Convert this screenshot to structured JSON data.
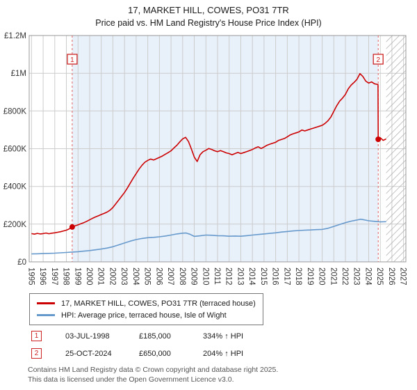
{
  "title": "17, MARKET HILL, COWES, PO31 7TR",
  "subtitle": "Price paid vs. HM Land Registry's House Price Index (HPI)",
  "colors": {
    "property": "#cc0000",
    "hpi": "#6699cc",
    "shade": "#e8f0fa",
    "grid": "#cccccc",
    "border": "#999999",
    "dashed": "#e06060",
    "marker_box": "#cc2222",
    "hatch": "#aaaaaa"
  },
  "transactions": [
    {
      "id": "1",
      "date": "03-JUL-1998",
      "price": "£185,000",
      "hpi": "334% ↑ HPI"
    },
    {
      "id": "2",
      "date": "25-OCT-2024",
      "price": "£650,000",
      "hpi": "204% ↑ HPI"
    }
  ],
  "footer": {
    "line1": "Contains HM Land Registry data © Crown copyright and database right 2025.",
    "line2": "This data is licensed under the Open Government Licence v3.0."
  },
  "chart_data": {
    "type": "line",
    "title": "17, MARKET HILL, COWES, PO31 7TR",
    "subtitle": "Price paid vs. HM Land Registry's House Price Index (HPI)",
    "grid": true,
    "legend_position": "bottom",
    "x_range": [
      1994.8,
      2027.2
    ],
    "y_range": [
      0,
      1200000
    ],
    "y_value_multiplier": 1000,
    "y_ticks": [
      {
        "value": 0,
        "label": "£0"
      },
      {
        "value": 200000,
        "label": "£200K"
      },
      {
        "value": 400000,
        "label": "£400K"
      },
      {
        "value": 600000,
        "label": "£600K"
      },
      {
        "value": 800000,
        "label": "£800K"
      },
      {
        "value": 1000000,
        "label": "£1M"
      },
      {
        "value": 1200000,
        "label": "£1.2M"
      }
    ],
    "x_ticks": [
      1995,
      1996,
      1997,
      1998,
      1999,
      2000,
      2001,
      2002,
      2003,
      2004,
      2005,
      2006,
      2007,
      2008,
      2009,
      2010,
      2011,
      2012,
      2013,
      2014,
      2015,
      2016,
      2017,
      2018,
      2019,
      2020,
      2021,
      2022,
      2023,
      2024,
      2025,
      2026,
      2027
    ],
    "shaded_region": [
      1998.5,
      2024.82
    ],
    "hatched_region": [
      2025.5,
      2027.2
    ],
    "markers": [
      {
        "id": "1",
        "x": 1998.5,
        "y": 185000
      },
      {
        "id": "2",
        "x": 2024.82,
        "y": 650000
      }
    ],
    "series": [
      {
        "name": "17, MARKET HILL, COWES, PO31 7TR (terraced house)",
        "color": "#cc0000",
        "width": 1.6,
        "points": [
          [
            1995,
            150
          ],
          [
            1995.25,
            147
          ],
          [
            1995.5,
            151
          ],
          [
            1995.75,
            148
          ],
          [
            1996,
            150
          ],
          [
            1996.25,
            153
          ],
          [
            1996.5,
            149
          ],
          [
            1996.75,
            152
          ],
          [
            1997,
            154
          ],
          [
            1997.25,
            157
          ],
          [
            1997.5,
            160
          ],
          [
            1997.75,
            164
          ],
          [
            1998,
            168
          ],
          [
            1998.25,
            175
          ],
          [
            1998.5,
            185
          ],
          [
            1998.75,
            191
          ],
          [
            1999,
            196
          ],
          [
            1999.25,
            202
          ],
          [
            1999.5,
            208
          ],
          [
            1999.75,
            215
          ],
          [
            2000,
            223
          ],
          [
            2000.25,
            231
          ],
          [
            2000.5,
            238
          ],
          [
            2000.75,
            244
          ],
          [
            2001,
            251
          ],
          [
            2001.25,
            257
          ],
          [
            2001.5,
            264
          ],
          [
            2001.75,
            274
          ],
          [
            2002,
            288
          ],
          [
            2002.25,
            308
          ],
          [
            2002.5,
            328
          ],
          [
            2002.75,
            348
          ],
          [
            2003,
            368
          ],
          [
            2003.25,
            392
          ],
          [
            2003.5,
            418
          ],
          [
            2003.75,
            444
          ],
          [
            2004,
            468
          ],
          [
            2004.25,
            492
          ],
          [
            2004.5,
            512
          ],
          [
            2004.75,
            528
          ],
          [
            2005,
            538
          ],
          [
            2005.25,
            545
          ],
          [
            2005.5,
            540
          ],
          [
            2005.75,
            547
          ],
          [
            2006,
            554
          ],
          [
            2006.25,
            561
          ],
          [
            2006.5,
            570
          ],
          [
            2006.75,
            579
          ],
          [
            2007,
            589
          ],
          [
            2007.25,
            604
          ],
          [
            2007.5,
            618
          ],
          [
            2007.75,
            636
          ],
          [
            2008,
            652
          ],
          [
            2008.25,
            660
          ],
          [
            2008.5,
            638
          ],
          [
            2008.75,
            598
          ],
          [
            2009,
            556
          ],
          [
            2009.25,
            532
          ],
          [
            2009.5,
            568
          ],
          [
            2009.75,
            584
          ],
          [
            2010,
            592
          ],
          [
            2010.25,
            601
          ],
          [
            2010.5,
            596
          ],
          [
            2010.75,
            589
          ],
          [
            2011,
            584
          ],
          [
            2011.25,
            590
          ],
          [
            2011.5,
            584
          ],
          [
            2011.75,
            578
          ],
          [
            2012,
            574
          ],
          [
            2012.25,
            568
          ],
          [
            2012.5,
            574
          ],
          [
            2012.75,
            580
          ],
          [
            2013,
            574
          ],
          [
            2013.25,
            579
          ],
          [
            2013.5,
            584
          ],
          [
            2013.75,
            590
          ],
          [
            2014,
            596
          ],
          [
            2014.25,
            604
          ],
          [
            2014.5,
            610
          ],
          [
            2014.75,
            601
          ],
          [
            2015,
            609
          ],
          [
            2015.25,
            618
          ],
          [
            2015.5,
            624
          ],
          [
            2015.75,
            629
          ],
          [
            2016,
            634
          ],
          [
            2016.25,
            644
          ],
          [
            2016.5,
            649
          ],
          [
            2016.75,
            654
          ],
          [
            2017,
            663
          ],
          [
            2017.25,
            673
          ],
          [
            2017.5,
            679
          ],
          [
            2017.75,
            684
          ],
          [
            2018,
            689
          ],
          [
            2018.25,
            699
          ],
          [
            2018.5,
            694
          ],
          [
            2018.75,
            699
          ],
          [
            2019,
            704
          ],
          [
            2019.25,
            709
          ],
          [
            2019.5,
            714
          ],
          [
            2019.75,
            719
          ],
          [
            2020,
            724
          ],
          [
            2020.25,
            734
          ],
          [
            2020.5,
            748
          ],
          [
            2020.75,
            768
          ],
          [
            2021,
            798
          ],
          [
            2021.25,
            828
          ],
          [
            2021.5,
            852
          ],
          [
            2021.75,
            868
          ],
          [
            2022,
            888
          ],
          [
            2022.25,
            918
          ],
          [
            2022.5,
            938
          ],
          [
            2022.75,
            952
          ],
          [
            2023,
            968
          ],
          [
            2023.25,
            998
          ],
          [
            2023.5,
            983
          ],
          [
            2023.75,
            958
          ],
          [
            2024,
            948
          ],
          [
            2024.25,
            954
          ],
          [
            2024.5,
            944
          ],
          [
            2024.8,
            940
          ],
          [
            2024.82,
            650
          ],
          [
            2025,
            658
          ],
          [
            2025.25,
            644
          ],
          [
            2025.5,
            652
          ]
        ]
      },
      {
        "name": "HPI: Average price, terraced house, Isle of Wight",
        "color": "#6699cc",
        "width": 1.6,
        "points": [
          [
            1995,
            42
          ],
          [
            1995.5,
            43
          ],
          [
            1996,
            44
          ],
          [
            1996.5,
            45
          ],
          [
            1997,
            46
          ],
          [
            1997.5,
            48
          ],
          [
            1998,
            50
          ],
          [
            1998.5,
            52
          ],
          [
            1999,
            54
          ],
          [
            1999.5,
            57
          ],
          [
            2000,
            60
          ],
          [
            2000.5,
            64
          ],
          [
            2001,
            68
          ],
          [
            2001.5,
            73
          ],
          [
            2002,
            80
          ],
          [
            2002.5,
            90
          ],
          [
            2003,
            100
          ],
          [
            2003.5,
            110
          ],
          [
            2004,
            118
          ],
          [
            2004.5,
            124
          ],
          [
            2005,
            128
          ],
          [
            2005.5,
            130
          ],
          [
            2006,
            133
          ],
          [
            2006.5,
            137
          ],
          [
            2007,
            142
          ],
          [
            2007.5,
            148
          ],
          [
            2008,
            152
          ],
          [
            2008.3,
            153
          ],
          [
            2008.6,
            147
          ],
          [
            2009,
            135
          ],
          [
            2009.5,
            138
          ],
          [
            2010,
            142
          ],
          [
            2010.5,
            141
          ],
          [
            2011,
            139
          ],
          [
            2011.5,
            138
          ],
          [
            2012,
            136
          ],
          [
            2012.5,
            137
          ],
          [
            2013,
            136
          ],
          [
            2013.5,
            139
          ],
          [
            2014,
            142
          ],
          [
            2014.5,
            145
          ],
          [
            2015,
            148
          ],
          [
            2015.5,
            151
          ],
          [
            2016,
            154
          ],
          [
            2016.5,
            158
          ],
          [
            2017,
            161
          ],
          [
            2017.5,
            164
          ],
          [
            2018,
            166
          ],
          [
            2018.5,
            168
          ],
          [
            2019,
            169
          ],
          [
            2019.5,
            171
          ],
          [
            2020,
            172
          ],
          [
            2020.5,
            178
          ],
          [
            2021,
            188
          ],
          [
            2021.5,
            198
          ],
          [
            2022,
            208
          ],
          [
            2022.5,
            216
          ],
          [
            2023,
            222
          ],
          [
            2023.3,
            226
          ],
          [
            2023.6,
            223
          ],
          [
            2024,
            218
          ],
          [
            2024.5,
            215
          ],
          [
            2025,
            212
          ],
          [
            2025.5,
            213
          ]
        ]
      }
    ]
  }
}
